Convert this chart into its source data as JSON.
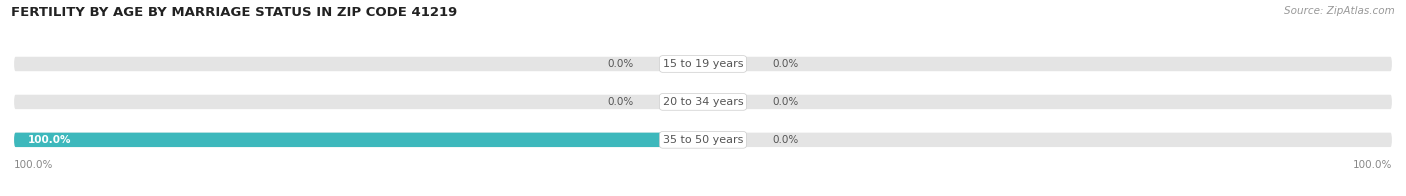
{
  "title": "FERTILITY BY AGE BY MARRIAGE STATUS IN ZIP CODE 41219",
  "source": "Source: ZipAtlas.com",
  "categories": [
    "15 to 19 years",
    "20 to 34 years",
    "35 to 50 years"
  ],
  "married_values": [
    0.0,
    0.0,
    100.0
  ],
  "unmarried_values": [
    0.0,
    0.0,
    0.0
  ],
  "married_color": "#3db8bc",
  "unmarried_color": "#f599ae",
  "bar_bg_color": "#e4e4e4",
  "bar_height": 0.38,
  "title_fontsize": 9.5,
  "source_fontsize": 7.5,
  "label_fontsize": 7.5,
  "category_fontsize": 8,
  "legend_fontsize": 8.5,
  "xlim_left": -100,
  "xlim_right": 100,
  "x_left_label": "100.0%",
  "x_right_label": "100.0%",
  "background_color": "#ffffff",
  "text_color": "#555555",
  "source_color": "#999999",
  "axis_label_color": "#888888"
}
